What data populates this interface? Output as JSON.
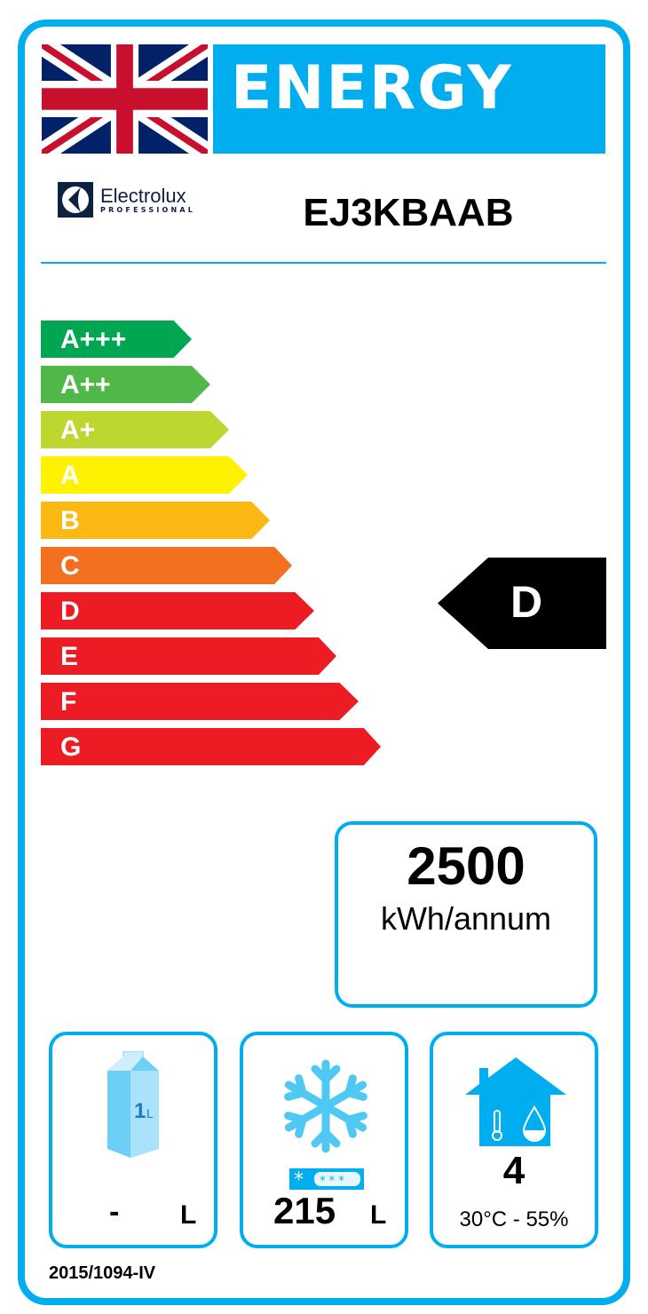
{
  "header": {
    "title": "ENERGY",
    "flag_icon": "union-jack-flag",
    "brand": "Electrolux",
    "brand_sub": "PROFESSIONAL",
    "model": "EJ3KBAAB"
  },
  "colors": {
    "accent": "#00aeef",
    "A+++": "#00a651",
    "A++": "#50b848",
    "A+": "#bed630",
    "A": "#fff200",
    "B": "#fdb913",
    "C": "#f37021",
    "D": "#ed1c24",
    "E": "#ed1c24",
    "F": "#ed1c24",
    "G": "#ed1c24"
  },
  "scale": {
    "classes": [
      "A+++",
      "A++",
      "A+",
      "A",
      "B",
      "C",
      "D",
      "E",
      "F",
      "G"
    ]
  },
  "rating": {
    "class": "D"
  },
  "consumption": {
    "value": "2500",
    "unit": "kWh/annum"
  },
  "chilled_volume": {
    "icon": "milk-carton-icon",
    "carton_label": "1L",
    "value": "-",
    "unit": "L"
  },
  "frozen_volume": {
    "icon": "snowflake-icon",
    "star_rating": "4-star",
    "value": "215",
    "unit": "L"
  },
  "climate_class": {
    "icon": "house-thermometer-drop-icon",
    "value": "4",
    "conditions": "30°C - 55%"
  },
  "footer": {
    "regulation": "2015/1094-IV"
  }
}
